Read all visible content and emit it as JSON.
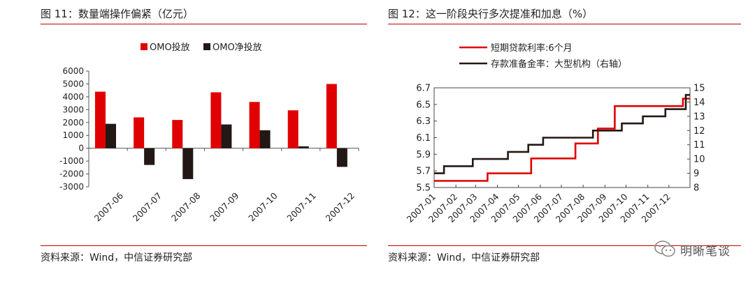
{
  "left_figure": {
    "title": "图 11：数量端操作偏紧（亿元）",
    "source": "资料来源：Wind，中信证券研究部"
  },
  "right_figure": {
    "title": "图 12：这一阶段央行多次提准和加息（%）",
    "source": "资料来源：Wind，中信证券研究部"
  },
  "watermark": {
    "text": "明晰笔谈",
    "icon": "wechat-icon"
  },
  "colors": {
    "accent_red": "#c00000",
    "bar_red": "#e00000",
    "dark": "#231815"
  },
  "chart_data": [
    {
      "type": "bar",
      "categories": [
        "2007-06",
        "2007-07",
        "2007-08",
        "2007-09",
        "2007-10",
        "2007-11",
        "2007-12"
      ],
      "series": [
        {
          "name": "OMO投放",
          "color": "#e00000",
          "values": [
            4400,
            2400,
            2200,
            4350,
            3600,
            2950,
            5000
          ]
        },
        {
          "name": "OMO净投放",
          "color": "#231815",
          "values": [
            1900,
            -1300,
            -2400,
            1850,
            1400,
            150,
            -1450
          ]
        }
      ],
      "ylim": [
        -3000,
        6000
      ],
      "yticks": [
        "6000",
        "5000",
        "4000",
        "3000",
        "2000",
        "1000",
        "0",
        "-1000",
        "-2000",
        "-3000"
      ],
      "legend_position": "top-center"
    },
    {
      "type": "line",
      "x_ticks": [
        "2007-01",
        "2007-02",
        "2007-03",
        "2007-04",
        "2007-05",
        "2007-06",
        "2007-07",
        "2007-08",
        "2007-09",
        "2007-10",
        "2007-11",
        "2007-12"
      ],
      "series": [
        {
          "name": "短期贷款利率:6个月",
          "color": "#e00000",
          "axis": "left",
          "points": [
            [
              "2007-01-01",
              5.58
            ],
            [
              "2007-03-18",
              5.58
            ],
            [
              "2007-03-18",
              5.67
            ],
            [
              "2007-05-19",
              5.67
            ],
            [
              "2007-05-19",
              5.85
            ],
            [
              "2007-07-21",
              5.85
            ],
            [
              "2007-07-21",
              6.03
            ],
            [
              "2007-08-22",
              6.03
            ],
            [
              "2007-08-22",
              6.21
            ],
            [
              "2007-09-15",
              6.21
            ],
            [
              "2007-09-15",
              6.48
            ],
            [
              "2007-12-21",
              6.48
            ],
            [
              "2007-12-21",
              6.57
            ],
            [
              "2007-12-31",
              6.57
            ]
          ]
        },
        {
          "name": "存款准备金率：大型机构（右轴）",
          "color": "#231815",
          "axis": "right",
          "points": [
            [
              "2007-01-01",
              9.0
            ],
            [
              "2007-01-15",
              9.0
            ],
            [
              "2007-01-15",
              9.5
            ],
            [
              "2007-02-25",
              9.5
            ],
            [
              "2007-02-25",
              10.0
            ],
            [
              "2007-04-16",
              10.0
            ],
            [
              "2007-04-16",
              10.5
            ],
            [
              "2007-05-15",
              10.5
            ],
            [
              "2007-05-15",
              11.0
            ],
            [
              "2007-06-05",
              11.0
            ],
            [
              "2007-06-05",
              11.5
            ],
            [
              "2007-08-15",
              11.5
            ],
            [
              "2007-08-15",
              12.0
            ],
            [
              "2007-09-25",
              12.0
            ],
            [
              "2007-09-25",
              12.5
            ],
            [
              "2007-10-25",
              12.5
            ],
            [
              "2007-10-25",
              13.0
            ],
            [
              "2007-11-26",
              13.0
            ],
            [
              "2007-11-26",
              13.5
            ],
            [
              "2007-12-25",
              13.5
            ],
            [
              "2007-12-25",
              14.5
            ],
            [
              "2007-12-31",
              14.5
            ]
          ]
        }
      ],
      "ylim_left": [
        5.5,
        6.7
      ],
      "yticks_left": [
        "6.7",
        "6.5",
        "6.3",
        "6.1",
        "5.9",
        "5.7",
        "5.5"
      ],
      "ylim_right": [
        8,
        15
      ],
      "yticks_right": [
        "15",
        "14",
        "13",
        "12",
        "11",
        "10",
        "9",
        "8"
      ],
      "legend_position": "top-left"
    }
  ]
}
